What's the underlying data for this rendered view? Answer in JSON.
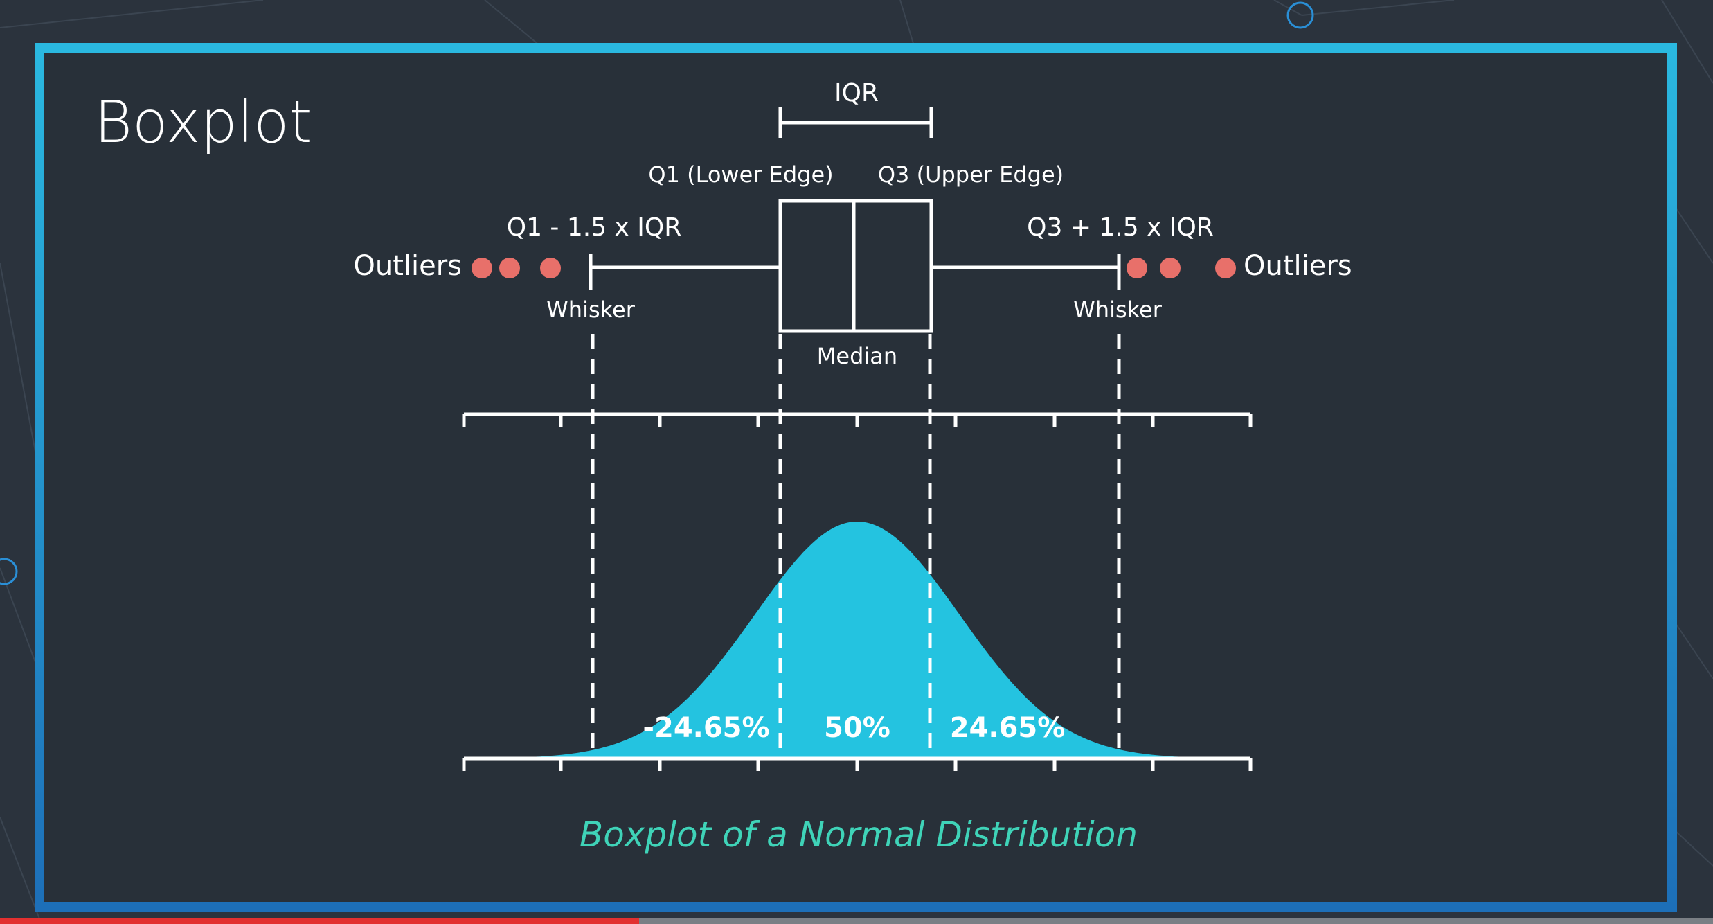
{
  "slide": {
    "title": "Boxplot",
    "caption": "Boxplot of a Normal Distribution"
  },
  "boxplot": {
    "iqr_label": "IQR",
    "q1_label": "Q1 (Lower Edge)",
    "q3_label": "Q3 (Upper Edge)",
    "lower_fence_label": "Q1 - 1.5 x IQR",
    "upper_fence_label": "Q3 + 1.5 x IQR",
    "outliers_left_label": "Outliers",
    "outliers_right_label": "Outliers",
    "whisker_left_label": "Whisker",
    "whisker_right_label": "Whisker",
    "median_label": "Median"
  },
  "distribution": {
    "left_tail_pct": "-24.65%",
    "center_pct": "50%",
    "right_tail_pct": "24.65%"
  },
  "colors": {
    "background": "#2b333d",
    "panel": "#283039",
    "frame_top": "#2ab8e0",
    "frame_bottom": "#1d6fb8",
    "curve_fill": "#24c3e0",
    "outlier": "#e8706a",
    "caption": "#3fd3b8",
    "line": "#ffffff"
  },
  "progress": {
    "fraction": 0.373
  }
}
